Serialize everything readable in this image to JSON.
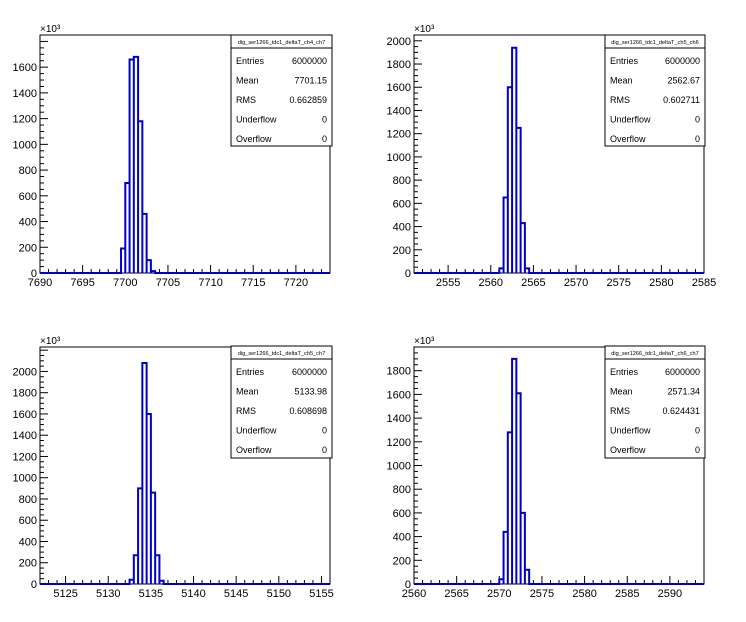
{
  "chart_data": [
    {
      "type": "histogram",
      "title": "dig_ser1266_tdc1_deltaT_ch4_ch7",
      "y_exponent": "×10³",
      "xlim": [
        7690,
        7724
      ],
      "xticks": [
        7690,
        7695,
        7700,
        7705,
        7710,
        7715,
        7720
      ],
      "ylim": [
        0,
        1850
      ],
      "yticks": [
        0,
        200,
        400,
        600,
        800,
        1000,
        1200,
        1400,
        1600
      ],
      "bin_width": 0.5,
      "bins": [
        {
          "x": 7699.5,
          "y": 190
        },
        {
          "x": 7700.0,
          "y": 700
        },
        {
          "x": 7700.5,
          "y": 1660
        },
        {
          "x": 7701.0,
          "y": 1680
        },
        {
          "x": 7701.5,
          "y": 1180
        },
        {
          "x": 7702.0,
          "y": 460
        },
        {
          "x": 7702.5,
          "y": 100
        },
        {
          "x": 7703.0,
          "y": 15
        }
      ],
      "stats": [
        {
          "label": "Entries",
          "value": "6000000"
        },
        {
          "label": "Mean",
          "value": "7701.15"
        },
        {
          "label": "RMS",
          "value": "0.662859"
        },
        {
          "label": "Underflow",
          "value": "0"
        },
        {
          "label": "Overflow",
          "value": "0"
        }
      ]
    },
    {
      "type": "histogram",
      "title": "dig_ser1266_tdc1_deltaT_ch5_ch6",
      "y_exponent": "×10³",
      "xlim": [
        2551,
        2585
      ],
      "xticks": [
        2555,
        2560,
        2565,
        2570,
        2575,
        2580,
        2585
      ],
      "ylim": [
        0,
        2050
      ],
      "yticks": [
        0,
        200,
        400,
        600,
        800,
        1000,
        1200,
        1400,
        1600,
        1800,
        2000
      ],
      "bin_width": 0.5,
      "bins": [
        {
          "x": 2561.0,
          "y": 40
        },
        {
          "x": 2561.5,
          "y": 650
        },
        {
          "x": 2562.0,
          "y": 1600
        },
        {
          "x": 2562.5,
          "y": 1940
        },
        {
          "x": 2563.0,
          "y": 1250
        },
        {
          "x": 2563.5,
          "y": 430
        },
        {
          "x": 2564.0,
          "y": 40
        }
      ],
      "stats": [
        {
          "label": "Entries",
          "value": "6000000"
        },
        {
          "label": "Mean",
          "value": "2562.67"
        },
        {
          "label": "RMS",
          "value": "0.602711"
        },
        {
          "label": "Underflow",
          "value": "0"
        },
        {
          "label": "Overflow",
          "value": "0"
        }
      ]
    },
    {
      "type": "histogram",
      "title": "dig_ser1266_tdc1_deltaT_ch5_ch7",
      "y_exponent": "×10³",
      "xlim": [
        5122,
        5156
      ],
      "xticks": [
        5125,
        5130,
        5135,
        5140,
        5145,
        5150,
        5155
      ],
      "ylim": [
        0,
        2230
      ],
      "yticks": [
        0,
        200,
        400,
        600,
        800,
        1000,
        1200,
        1400,
        1600,
        1800,
        2000
      ],
      "bin_width": 0.5,
      "bins": [
        {
          "x": 5132.5,
          "y": 40
        },
        {
          "x": 5133.0,
          "y": 270
        },
        {
          "x": 5133.5,
          "y": 900
        },
        {
          "x": 5134.0,
          "y": 2080
        },
        {
          "x": 5134.5,
          "y": 1600
        },
        {
          "x": 5135.0,
          "y": 860
        },
        {
          "x": 5135.5,
          "y": 270
        },
        {
          "x": 5136.0,
          "y": 30
        }
      ],
      "stats": [
        {
          "label": "Entries",
          "value": "6000000"
        },
        {
          "label": "Mean",
          "value": "5133.98"
        },
        {
          "label": "RMS",
          "value": "0.608698"
        },
        {
          "label": "Underflow",
          "value": "0"
        },
        {
          "label": "Overflow",
          "value": "0"
        }
      ]
    },
    {
      "type": "histogram",
      "title": "dig_ser1266_tdc1_deltaT_ch6_ch7",
      "y_exponent": "×10³",
      "xlim": [
        2560,
        2594
      ],
      "xticks": [
        2560,
        2565,
        2570,
        2575,
        2580,
        2585,
        2590
      ],
      "ylim": [
        0,
        2000
      ],
      "yticks": [
        0,
        200,
        400,
        600,
        800,
        1000,
        1200,
        1400,
        1600,
        1800
      ],
      "bin_width": 0.5,
      "bins": [
        {
          "x": 2570.0,
          "y": 40
        },
        {
          "x": 2570.5,
          "y": 440
        },
        {
          "x": 2571.0,
          "y": 1280
        },
        {
          "x": 2571.5,
          "y": 1900
        },
        {
          "x": 2572.0,
          "y": 1610
        },
        {
          "x": 2572.5,
          "y": 600
        },
        {
          "x": 2573.0,
          "y": 120
        }
      ],
      "stats": [
        {
          "label": "Entries",
          "value": "6000000"
        },
        {
          "label": "Mean",
          "value": "2571.34"
        },
        {
          "label": "RMS",
          "value": "0.624431"
        },
        {
          "label": "Underflow",
          "value": "0"
        },
        {
          "label": "Overflow",
          "value": "0"
        }
      ]
    }
  ],
  "colors": {
    "histogram_line": "#0000cc",
    "axis": "#000000",
    "background": "#ffffff"
  }
}
